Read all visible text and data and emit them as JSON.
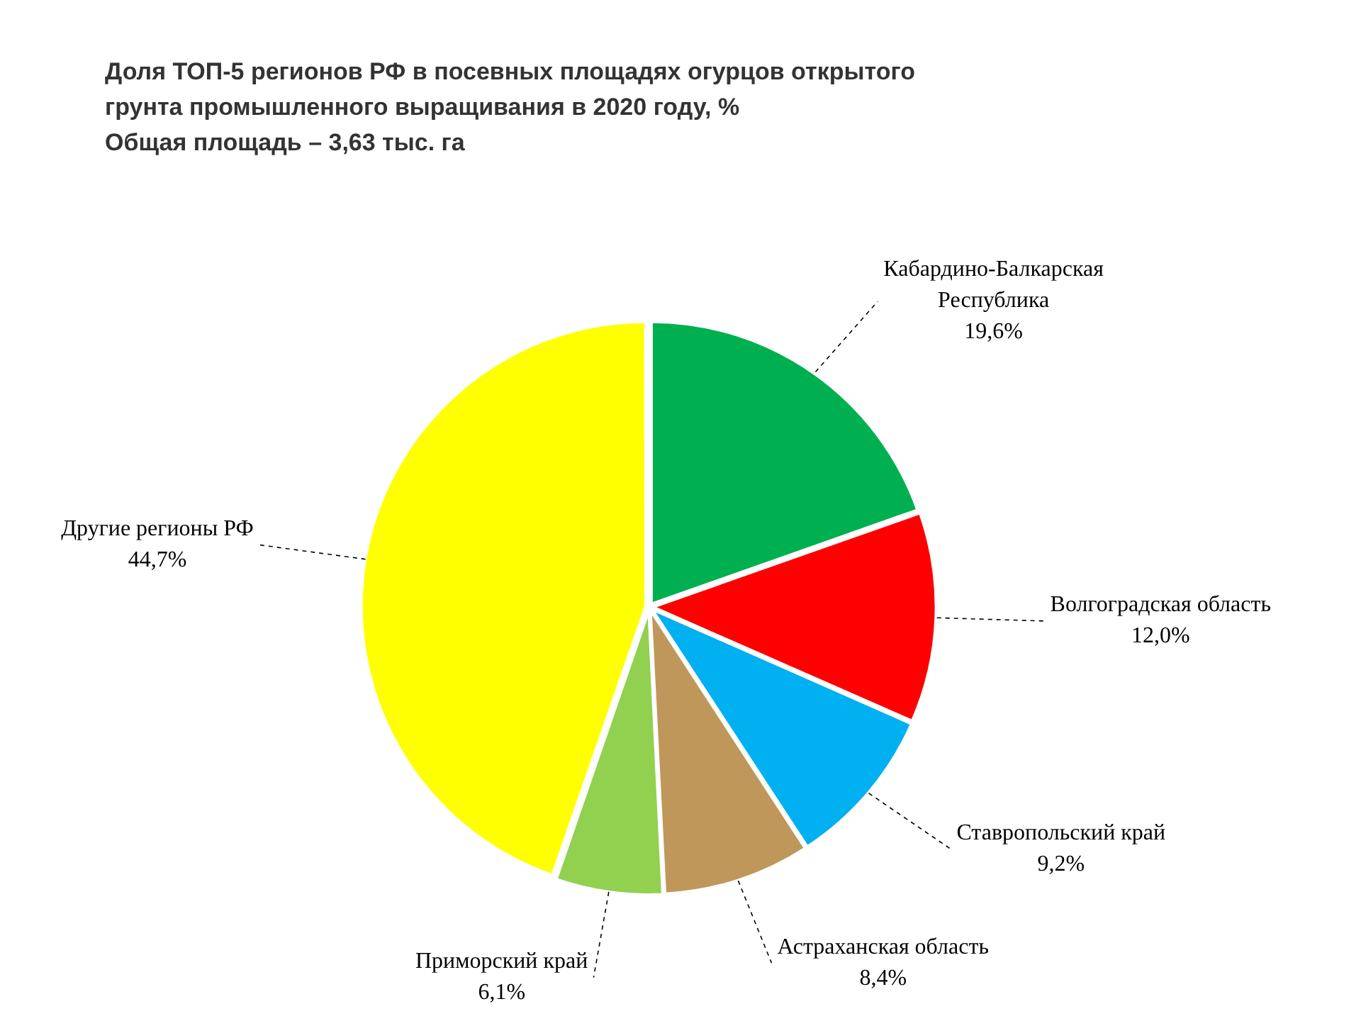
{
  "chart_data": {
    "type": "pie",
    "title": "Доля ТОП-5 регионов РФ в посевных площадях огурцов открытого грунта промышленного выращивания в 2020 году, %",
    "subtitle": "Общая площадь – 3,63 тыс. га",
    "categories": [
      "Кабардино-Балкарская Республика",
      "Волгоградская область",
      "Ставропольский край",
      "Астраханская область",
      "Приморский край",
      "Другие регионы РФ"
    ],
    "values": [
      19.6,
      12.0,
      9.2,
      8.4,
      6.1,
      44.7
    ],
    "value_labels": [
      "19,6%",
      "12,0%",
      "9,2%",
      "8,4%",
      "6,1%",
      "44,7%"
    ],
    "colors": [
      "#00b050",
      "#ff0000",
      "#00b0f0",
      "#c0975a",
      "#92d050",
      "#ffff00"
    ],
    "legend": false
  }
}
